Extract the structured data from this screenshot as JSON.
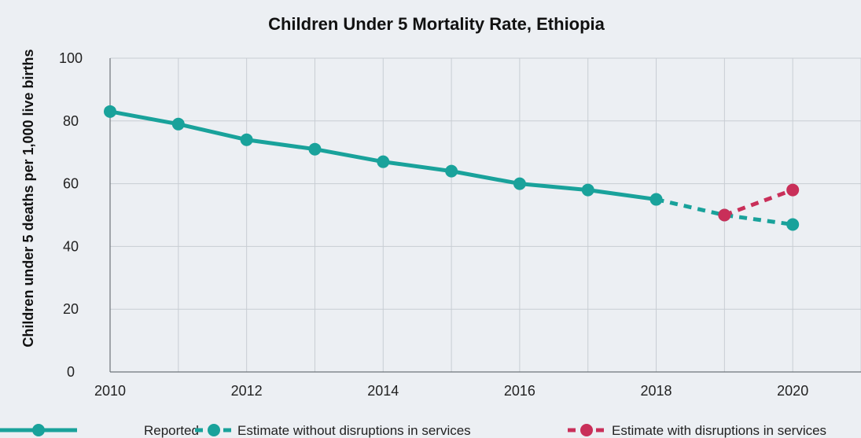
{
  "chart_data": {
    "type": "line",
    "title": "Children Under 5 Mortality Rate, Ethiopia",
    "xlabel": "",
    "ylabel": "Children under 5 deaths per 1,000 live births",
    "xlim": [
      2010,
      2021
    ],
    "ylim": [
      0,
      100
    ],
    "xticks": [
      2010,
      2012,
      2014,
      2016,
      2018,
      2020
    ],
    "yticks": [
      0,
      20,
      40,
      60,
      80,
      100
    ],
    "grid": true,
    "legend_position": "bottom",
    "series": [
      {
        "name": "Reported",
        "style": "solid",
        "color": "#19a29b",
        "points": [
          {
            "x": 2010,
            "y": 83
          },
          {
            "x": 2011,
            "y": 79
          },
          {
            "x": 2012,
            "y": 74
          },
          {
            "x": 2013,
            "y": 71
          },
          {
            "x": 2014,
            "y": 67
          },
          {
            "x": 2015,
            "y": 64
          },
          {
            "x": 2016,
            "y": 60
          },
          {
            "x": 2017,
            "y": 58
          },
          {
            "x": 2018,
            "y": 55
          }
        ]
      },
      {
        "name": "Estimate without disruptions in services",
        "style": "dashed",
        "color": "#19a29b",
        "points": [
          {
            "x": 2018,
            "y": 55
          },
          {
            "x": 2019,
            "y": 50
          },
          {
            "x": 2020,
            "y": 47
          }
        ]
      },
      {
        "name": "Estimate with disruptions in services",
        "style": "dashed",
        "color": "#c92f59",
        "points": [
          {
            "x": 2019,
            "y": 50
          },
          {
            "x": 2020,
            "y": 58
          }
        ]
      }
    ]
  }
}
